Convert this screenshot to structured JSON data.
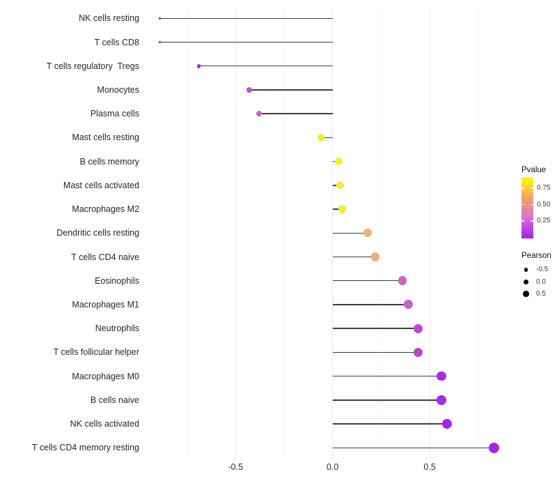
{
  "chart_data": {
    "type": "scatter",
    "variant": "lollipop",
    "orientation": "horizontal",
    "title": "",
    "xlabel": "",
    "ylabel": "",
    "xlim": [
      -0.97,
      0.91
    ],
    "grid": "on",
    "x_ticks": [
      {
        "value": -0.5,
        "label": "-0.5"
      },
      {
        "value": 0.0,
        "label": "0.0"
      },
      {
        "value": 0.5,
        "label": "0.5"
      }
    ],
    "x_minor_gridlines": [
      -0.75,
      -0.25,
      0.25,
      0.75
    ],
    "size_domain": [
      -0.89,
      0.83
    ],
    "points": [
      {
        "label": "NK cells resting",
        "pearson": -0.89,
        "color": "#8B22D6"
      },
      {
        "label": "T cells CD8",
        "pearson": -0.89,
        "color": "#8B22D6"
      },
      {
        "label": "T cells regulatory  Tregs",
        "pearson": -0.69,
        "color": "#9633DD"
      },
      {
        "label": "Monocytes",
        "pearson": -0.43,
        "color": "#BE4FD0"
      },
      {
        "label": "Plasma cells",
        "pearson": -0.38,
        "color": "#C763C8"
      },
      {
        "label": "Mast cells resting",
        "pearson": -0.06,
        "color": "#F5E93C"
      },
      {
        "label": "B cells memory",
        "pearson": 0.03,
        "color": "#F7EE34"
      },
      {
        "label": "Mast cells activated",
        "pearson": 0.04,
        "color": "#F5E93C"
      },
      {
        "label": "Macrophages M2",
        "pearson": 0.05,
        "color": "#F5E93C"
      },
      {
        "label": "Dendritic cells resting",
        "pearson": 0.18,
        "color": "#EFB07E"
      },
      {
        "label": "T cells CD4 naive",
        "pearson": 0.22,
        "color": "#EFA98B"
      },
      {
        "label": "Eosinophils",
        "pearson": 0.36,
        "color": "#C965C5"
      },
      {
        "label": "Macrophages M1",
        "pearson": 0.39,
        "color": "#C75FC8"
      },
      {
        "label": "Neutrophils",
        "pearson": 0.44,
        "color": "#BB4BD1"
      },
      {
        "label": "T cells follicular helper",
        "pearson": 0.44,
        "color": "#BB46D3"
      },
      {
        "label": "Macrophages M0",
        "pearson": 0.56,
        "color": "#A82BE1"
      },
      {
        "label": "B cells naive",
        "pearson": 0.56,
        "color": "#A82BE1"
      },
      {
        "label": "NK cells activated",
        "pearson": 0.59,
        "color": "#A526E5"
      },
      {
        "label": "T cells CD4 memory resting",
        "pearson": 0.83,
        "color": "#A125EB"
      }
    ],
    "legend": {
      "pvalue": {
        "title": "Pvalue",
        "tick_labels": [
          "0.75",
          "0.50",
          "0.25"
        ],
        "tick_fractions_from_bottom": [
          0.818,
          0.551,
          0.283
        ],
        "gradient_colors_bottom_to_top": [
          "#A020F0",
          "#DA70D6",
          "#F4A460",
          "#FFFF00"
        ]
      },
      "pearson": {
        "title": "Pearson",
        "items": [
          {
            "label": "-0.5",
            "diameter": 5.8
          },
          {
            "label": "0.0",
            "diameter": 7.3
          },
          {
            "label": "0.5",
            "diameter": 8.7
          }
        ]
      }
    }
  }
}
